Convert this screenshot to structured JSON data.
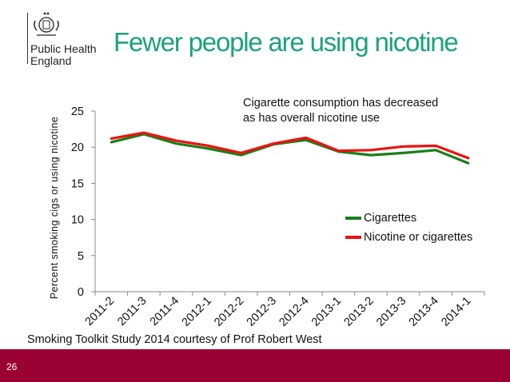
{
  "header": {
    "org_line1": "Public Health",
    "org_line2": "England",
    "title": "Fewer people are using nicotine"
  },
  "colors": {
    "title": "#1aa37a",
    "footer": "#9b0032",
    "cigarettes": "#1a7f1a",
    "nicotine": "#ee1111"
  },
  "annotation": {
    "line1": "Cigarette consumption has decreased",
    "line2": "as has overall nicotine use"
  },
  "source": "Smoking Toolkit Study 2014 courtesy of Prof Robert West",
  "page_number": "26",
  "chart_data": {
    "type": "line",
    "title": "",
    "xlabel": "",
    "ylabel": "Percent smoking cigs or using nicotine",
    "categories": [
      "2011-2",
      "2011-3",
      "2011-4",
      "2012-1",
      "2012-2",
      "2012-3",
      "2012-4",
      "2013-1",
      "2013-2",
      "2013-3",
      "2013-4",
      "2014-1"
    ],
    "ylim": [
      0,
      25
    ],
    "yticks": [
      0,
      5,
      10,
      15,
      20,
      25
    ],
    "legend_position": "right",
    "series": [
      {
        "name": "Cigarettes",
        "color": "#1a7f1a",
        "values": [
          20.7,
          21.8,
          20.5,
          19.8,
          18.9,
          20.4,
          21.0,
          19.4,
          18.9,
          19.2,
          19.6,
          17.8
        ]
      },
      {
        "name": "Nicotine or cigarettes",
        "color": "#ee1111",
        "values": [
          21.2,
          22.0,
          20.9,
          20.2,
          19.2,
          20.5,
          21.3,
          19.5,
          19.6,
          20.1,
          20.2,
          18.5
        ]
      }
    ]
  }
}
